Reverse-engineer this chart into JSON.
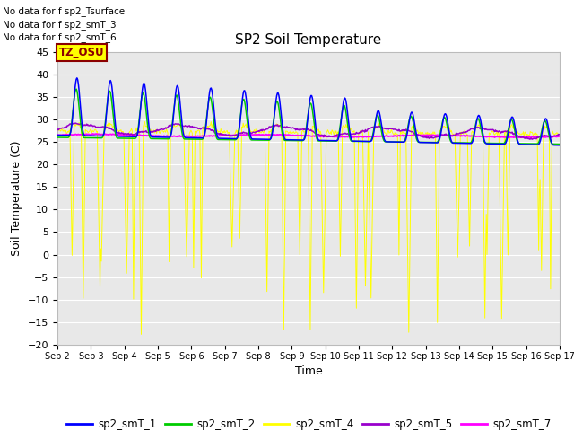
{
  "title": "SP2 Soil Temperature",
  "xlabel": "Time",
  "ylabel": "Soil Temperature (C)",
  "ylim": [
    -20,
    45
  ],
  "no_data_texts": [
    "No data for f sp2_Tsurface",
    "No data for f sp2_smT_3",
    "No data for f sp2_smT_6"
  ],
  "tz_label": "TZ_OSU",
  "colors": {
    "sp2_smT_1": "#0000FF",
    "sp2_smT_2": "#00CC00",
    "sp2_smT_4": "#FFFF00",
    "sp2_smT_5": "#9900CC",
    "sp2_smT_7": "#FF00FF"
  },
  "legend_labels": [
    "sp2_smT_1",
    "sp2_smT_2",
    "sp2_smT_4",
    "sp2_smT_5",
    "sp2_smT_7"
  ],
  "bg_color": "#E8E8E8",
  "fig_color": "#FFFFFF",
  "grid_color": "#FFFFFF",
  "xticklabels": [
    "Sep 2",
    "Sep 3",
    "Sep 4",
    "Sep 5",
    "Sep 6",
    "Sep 7",
    "Sep 8",
    "Sep 9",
    "Sep 10",
    "Sep 11",
    "Sep 12",
    "Sep 13",
    "Sep 14",
    "Sep 15",
    "Sep 16",
    "Sep 17"
  ]
}
